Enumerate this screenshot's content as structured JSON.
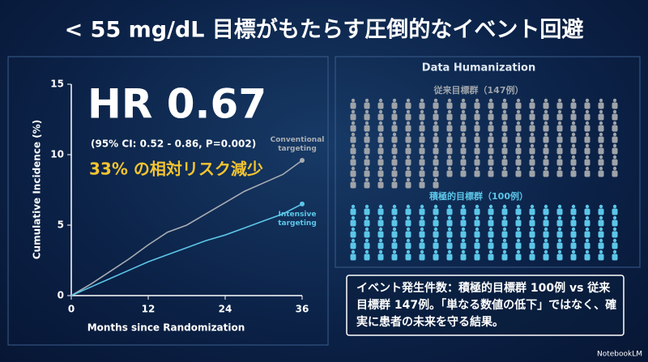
{
  "title": "< 55 mg/dL 目標がもたらす圧倒的なイベント回避",
  "hr": {
    "headline": "HR 0.67",
    "ci": "(95% CI: 0.52 - 0.86, P=0.002)",
    "reduction": "33% の相対リスク減少"
  },
  "chart_data": {
    "type": "line",
    "x_label": "Months since Randomization",
    "y_label": "Cumulative Incidence (%)",
    "x": [
      0,
      3,
      6,
      9,
      12,
      15,
      18,
      21,
      24,
      27,
      30,
      33,
      36
    ],
    "series": [
      {
        "name": "Conventional targeting",
        "color": "#a9adb3",
        "values": [
          0,
          0.8,
          1.7,
          2.6,
          3.6,
          4.5,
          5.0,
          5.8,
          6.6,
          7.4,
          8.0,
          8.6,
          9.6
        ]
      },
      {
        "name": "Intensive targeting",
        "color": "#5cc6e8",
        "values": [
          0,
          0.6,
          1.2,
          1.8,
          2.4,
          2.9,
          3.4,
          3.9,
          4.3,
          4.8,
          5.3,
          5.8,
          6.5
        ]
      }
    ],
    "xlim": [
      0,
      36
    ],
    "xticks": [
      0,
      12,
      24,
      36
    ],
    "ylim": [
      0,
      15
    ],
    "yticks": [
      0,
      5,
      10,
      15
    ]
  },
  "humanization": {
    "heading": "Data Humanization",
    "groups": [
      {
        "label": "従来目標群（147例）",
        "count": 147,
        "color": "#9ea3a9"
      },
      {
        "label": "積極的目標群（100例）",
        "count": 100,
        "color": "#5cc6e8"
      }
    ]
  },
  "callout": "イベント発生件数：積極的目標群 100例 vs 従来目標群 147例。「単なる数値の低下」ではなく、確実に患者の未来を守る結果。",
  "logo": "NotebookLM"
}
